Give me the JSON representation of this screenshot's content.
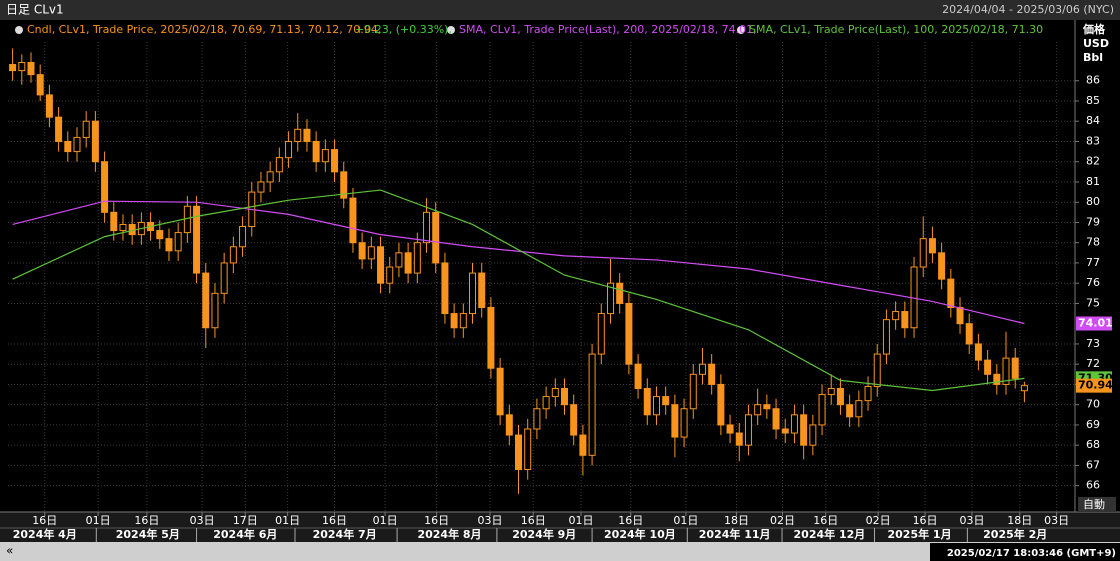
{
  "chart_data": {
    "type": "candlestick",
    "title": "日足 CLv1",
    "date_range": "2024/04/04 - 2025/03/06 (NYC)",
    "legend": {
      "candle": "Cndl, CLv1, Trade Price, 2025/02/18, 70.69, 71.13, 70.12, 70.94,",
      "change": "+0.23, (+0.33%),"
    },
    "color": "#f7941d",
    "last_label": "70.94",
    "open": [
      86.8,
      86.5,
      86.9,
      86.3,
      85.3,
      84.2,
      83.0,
      82.5,
      83.2,
      84.0,
      82.0,
      79.5,
      78.6,
      78.9,
      78.4,
      79.0,
      78.6,
      78.2,
      77.6,
      78.5,
      79.8,
      76.5,
      73.8,
      75.5,
      77.0,
      77.8,
      78.8,
      80.5,
      81.0,
      81.5,
      82.2,
      83.0,
      83.6,
      83.0,
      82.0,
      82.6,
      81.5,
      80.2,
      78.0,
      77.2,
      77.8,
      76.0,
      76.8,
      77.5,
      76.5,
      78.0,
      79.5,
      77.0,
      74.5,
      73.8,
      74.5,
      76.5,
      74.8,
      71.8,
      69.5,
      68.5,
      66.8,
      68.8,
      69.8,
      70.4,
      70.8,
      70.0,
      68.5,
      67.5,
      72.5,
      74.5,
      76.0,
      75.0,
      72.0,
      70.8,
      69.5,
      70.4,
      70.0,
      68.4,
      69.8,
      71.5,
      72.0,
      71.0,
      69.0,
      68.6,
      68.0,
      69.5,
      70.0,
      69.8,
      68.8,
      68.6,
      69.5,
      68.0,
      69.0,
      70.5,
      70.8,
      70.0,
      69.4,
      70.2,
      70.9,
      72.5,
      74.2,
      74.6,
      73.8,
      76.8,
      78.2,
      77.5,
      76.2,
      74.8,
      74.0,
      73.0,
      72.2,
      71.5,
      71.0,
      72.3,
      70.69
    ],
    "high": [
      87.6,
      87.3,
      87.4,
      86.8,
      85.8,
      84.7,
      83.5,
      83.7,
      84.5,
      84.5,
      82.5,
      80.0,
      79.4,
      79.4,
      79.5,
      79.5,
      79.1,
      78.7,
      79.0,
      80.3,
      80.3,
      77.0,
      76.0,
      77.5,
      78.3,
      79.3,
      81.0,
      81.5,
      82.0,
      82.7,
      83.5,
      84.4,
      84.1,
      83.5,
      83.1,
      83.1,
      82.0,
      80.7,
      78.5,
      78.3,
      78.3,
      77.3,
      78.0,
      78.0,
      78.5,
      80.2,
      80.0,
      77.5,
      75.0,
      75.0,
      77.0,
      77.0,
      75.3,
      72.3,
      70.0,
      69.0,
      69.3,
      70.3,
      70.9,
      71.3,
      71.3,
      70.5,
      69.0,
      73.0,
      75.0,
      77.2,
      76.5,
      75.5,
      72.5,
      71.3,
      70.9,
      70.9,
      70.5,
      70.3,
      72.0,
      72.8,
      72.5,
      71.5,
      69.5,
      69.1,
      70.0,
      70.8,
      70.5,
      70.3,
      69.3,
      70.0,
      70.0,
      69.5,
      71.0,
      71.5,
      71.3,
      70.5,
      70.7,
      71.4,
      73.0,
      74.7,
      75.1,
      75.1,
      77.3,
      79.3,
      78.8,
      78.0,
      76.7,
      75.3,
      74.5,
      73.5,
      72.7,
      72.0,
      73.6,
      72.8,
      71.13
    ],
    "low": [
      86.0,
      85.8,
      85.9,
      85.0,
      83.7,
      82.5,
      82.0,
      82.0,
      82.7,
      81.5,
      79.0,
      78.1,
      78.1,
      77.9,
      77.9,
      78.1,
      77.7,
      77.1,
      77.1,
      78.0,
      76.0,
      72.8,
      73.3,
      75.0,
      76.5,
      77.3,
      78.3,
      80.0,
      80.5,
      81.0,
      81.7,
      82.5,
      82.5,
      81.5,
      81.5,
      81.0,
      79.7,
      77.5,
      76.7,
      76.7,
      75.5,
      75.5,
      76.3,
      76.0,
      76.0,
      77.5,
      76.5,
      74.0,
      73.3,
      73.3,
      74.0,
      74.3,
      71.3,
      69.0,
      68.0,
      65.6,
      66.3,
      68.3,
      69.3,
      69.9,
      69.5,
      68.0,
      66.5,
      67.0,
      72.0,
      74.0,
      74.5,
      71.5,
      70.3,
      69.0,
      69.0,
      69.5,
      67.4,
      67.9,
      69.3,
      71.0,
      70.5,
      68.5,
      68.1,
      67.2,
      67.5,
      69.0,
      69.3,
      68.3,
      68.1,
      68.1,
      67.3,
      67.5,
      68.5,
      70.0,
      69.5,
      68.9,
      68.9,
      69.7,
      70.4,
      72.0,
      73.7,
      73.3,
      73.3,
      76.3,
      77.0,
      75.7,
      74.3,
      73.5,
      72.5,
      71.7,
      71.0,
      70.5,
      70.5,
      70.8,
      70.12
    ],
    "close": [
      86.5,
      86.9,
      86.3,
      85.3,
      84.2,
      83.0,
      82.5,
      83.2,
      84.0,
      82.0,
      79.5,
      78.6,
      78.9,
      78.4,
      79.0,
      78.6,
      78.2,
      77.6,
      78.5,
      79.8,
      76.5,
      73.8,
      75.5,
      77.0,
      77.8,
      78.8,
      80.5,
      81.0,
      81.5,
      82.2,
      83.0,
      83.6,
      83.0,
      82.0,
      82.6,
      81.5,
      80.2,
      78.0,
      77.2,
      77.8,
      76.0,
      76.8,
      77.5,
      76.5,
      78.0,
      79.5,
      77.0,
      74.5,
      73.8,
      74.5,
      76.5,
      74.8,
      71.8,
      69.5,
      68.5,
      66.8,
      68.8,
      69.8,
      70.4,
      70.8,
      70.0,
      68.5,
      67.5,
      72.5,
      74.5,
      76.0,
      75.0,
      72.0,
      70.8,
      69.5,
      70.4,
      70.0,
      68.4,
      69.8,
      71.5,
      72.0,
      71.0,
      69.0,
      68.6,
      68.0,
      69.5,
      70.0,
      69.8,
      68.8,
      68.6,
      69.5,
      68.0,
      69.0,
      70.5,
      70.8,
      70.0,
      69.4,
      70.2,
      70.9,
      72.5,
      74.2,
      74.6,
      73.8,
      76.8,
      78.2,
      77.5,
      76.2,
      74.8,
      74.0,
      73.0,
      72.2,
      71.5,
      71.0,
      72.3,
      71.3,
      70.94
    ],
    "series": [
      {
        "name": "SMA, CLv1, Trade Price(Last), 200, 2025/02/18, 74.01,",
        "color": "#d24cf5",
        "last_label": "74.01",
        "x": [
          0,
          10,
          20,
          30,
          40,
          50,
          60,
          70,
          80,
          90,
          100,
          110
        ],
        "values": [
          78.9,
          80.05,
          80.0,
          79.4,
          78.4,
          77.8,
          77.35,
          77.15,
          76.7,
          75.9,
          75.1,
          74.01
        ]
      },
      {
        "name": "SMA, CLv1, Trade Price(Last), 100, 2025/02/18, 71.30",
        "color": "#5ec43a",
        "last_label": "71.30",
        "x": [
          0,
          10,
          20,
          30,
          40,
          50,
          60,
          70,
          80,
          90,
          100,
          110
        ],
        "values": [
          76.2,
          78.3,
          79.3,
          80.1,
          80.6,
          78.9,
          76.4,
          75.2,
          73.7,
          71.2,
          70.7,
          71.3
        ]
      }
    ],
    "xlim": [
      -0.5,
      115.5
    ],
    "ylim": [
      64.7,
      88.9
    ],
    "grid": true,
    "yticks": [
      66,
      67,
      68,
      69,
      70,
      71,
      72,
      73,
      75,
      76,
      77,
      78,
      79,
      80,
      81,
      82,
      83,
      84,
      85,
      86
    ],
    "xticks": [
      {
        "value": 3.5,
        "label": "16日"
      },
      {
        "value": 9.3,
        "label": "01日"
      },
      {
        "value": 14.6,
        "label": "16日"
      },
      {
        "value": 20.6,
        "label": "03日"
      },
      {
        "value": 25.3,
        "label": "17日"
      },
      {
        "value": 29.9,
        "label": "01日"
      },
      {
        "value": 35,
        "label": "16日"
      },
      {
        "value": 40.5,
        "label": "01日"
      },
      {
        "value": 46.1,
        "label": "16日"
      },
      {
        "value": 51.9,
        "label": "03日"
      },
      {
        "value": 56.6,
        "label": "16日"
      },
      {
        "value": 61.8,
        "label": "01日"
      },
      {
        "value": 67.2,
        "label": "16日"
      },
      {
        "value": 73.2,
        "label": "01日"
      },
      {
        "value": 78.7,
        "label": "18日"
      },
      {
        "value": 83.7,
        "label": "02日"
      },
      {
        "value": 88.4,
        "label": "16日"
      },
      {
        "value": 94.1,
        "label": "02日"
      },
      {
        "value": 99.2,
        "label": "16日"
      },
      {
        "value": 104.3,
        "label": "03日"
      },
      {
        "value": 109.5,
        "label": "18日"
      },
      {
        "value": 113.5,
        "label": "03日"
      }
    ],
    "month_labels": [
      {
        "value": 3.5,
        "label": "2024年 4月"
      },
      {
        "value": 14.7,
        "label": "2024年 5月"
      },
      {
        "value": 25.3,
        "label": "2024年 6月"
      },
      {
        "value": 36.1,
        "label": "2024年 7月"
      },
      {
        "value": 47.5,
        "label": "2024年 8月"
      },
      {
        "value": 57.8,
        "label": "2024年 9月"
      },
      {
        "value": 68.2,
        "label": "2024年 10月"
      },
      {
        "value": 78.5,
        "label": "2024年 11月"
      },
      {
        "value": 88.8,
        "label": "2024年 12月"
      },
      {
        "value": 98.6,
        "label": "2025年 1月"
      },
      {
        "value": 109,
        "label": "2025年 2月"
      }
    ],
    "y_axis_label": [
      "価格",
      "USD",
      "Bbl"
    ],
    "auto_label": "自動",
    "timestamp": "2025/02/17 18:03:46 (GMT+9)"
  }
}
